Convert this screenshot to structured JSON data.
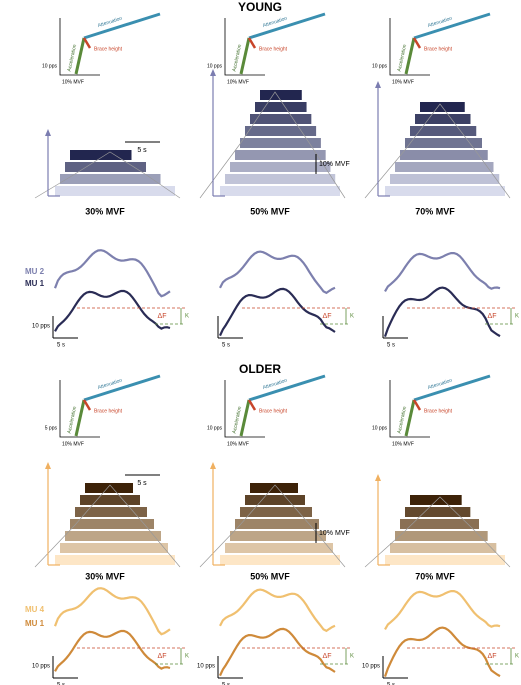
{
  "sections": [
    {
      "title": "YOUNG",
      "conditions": [
        "30% MVF",
        "50% MVF",
        "70% MVF"
      ],
      "units": [
        "MU 2",
        "MU 1"
      ],
      "labels": {
        "acceleration": "Acceleration",
        "attenuation": "Attenuation",
        "brace_height": "Brace height",
        "delta_f": "ΔF",
        "k": "K"
      },
      "columns": [
        {
          "inset_y_scale": "10 pps",
          "inset_x_scale": "10% MVF",
          "raster_time": "5 s",
          "rate_scale": "10 pps",
          "time_scale": "5 s"
        },
        {
          "inset_y_scale": "10 pps",
          "inset_x_scale": "10% MVF",
          "raster_force": "10% MVF",
          "time_scale": "5 s"
        },
        {
          "inset_y_scale": "10 pps",
          "inset_x_scale": "10% MVF",
          "time_scale": "5 s"
        }
      ]
    },
    {
      "title": "OLDER",
      "conditions": [
        "30% MVF",
        "50% MVF",
        "70% MVF"
      ],
      "units": [
        "MU 4",
        "MU 1"
      ],
      "labels": {
        "acceleration": "Acceleration",
        "attenuation": "Attenuation",
        "brace_height": "Brace height",
        "delta_f": "ΔF",
        "k": "K"
      },
      "columns": [
        {
          "inset_y_scale": "5 pps",
          "inset_x_scale": "10% MVF",
          "raster_time": "5 s",
          "rate_scale": "10 pps",
          "time_scale": "5 s"
        },
        {
          "inset_y_scale": "10 pps",
          "inset_x_scale": "10% MVF",
          "raster_force": "10% MVF",
          "rate_scale": "10 pps",
          "time_scale": "5 s"
        },
        {
          "inset_y_scale": "10 pps",
          "inset_x_scale": "10% MVF",
          "rate_scale": "10 pps",
          "time_scale": "5 s"
        }
      ]
    }
  ]
}
